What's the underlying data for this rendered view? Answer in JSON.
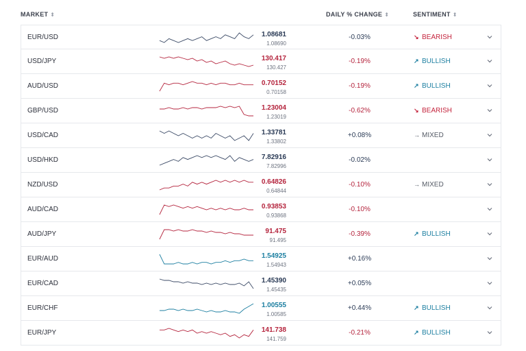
{
  "header": {
    "market": "MARKET",
    "daily_change": "DAILY % CHANGE",
    "sentiment": "SENTIMENT",
    "sort_icon": "sort-icon"
  },
  "colors": {
    "bearish": "#c4233c",
    "bullish": "#1b7ea0",
    "negative": "#b4233c",
    "neutral": "#2a3a55"
  },
  "rows": [
    {
      "pair": "EUR/USD",
      "price": "1.08681",
      "prev": "1.08690",
      "change": "-0.03%",
      "change_dir": "neutral",
      "price_dir": "up",
      "sentiment": "BEARISH",
      "sentiment_type": "bear",
      "spark": [
        6,
        7,
        5,
        6,
        7,
        6,
        5,
        6,
        5,
        4,
        6,
        5,
        4,
        5,
        3,
        4,
        5,
        2,
        4,
        5,
        3
      ]
    },
    {
      "pair": "USD/JPY",
      "price": "130.417",
      "prev": "130.427",
      "change": "-0.19%",
      "change_dir": "neg",
      "price_dir": "down",
      "sentiment": "BULLISH",
      "sentiment_type": "bull",
      "spark": [
        2,
        3,
        2,
        3,
        2,
        3,
        4,
        3,
        5,
        4,
        6,
        5,
        7,
        6,
        5,
        7,
        8,
        7,
        8,
        9,
        8
      ]
    },
    {
      "pair": "AUD/USD",
      "price": "0.70152",
      "prev": "0.70158",
      "change": "-0.19%",
      "change_dir": "neg",
      "price_dir": "down",
      "sentiment": "BULLISH",
      "sentiment_type": "bull",
      "spark": [
        8,
        3,
        4,
        3,
        3,
        4,
        3,
        2,
        3,
        3,
        4,
        3,
        4,
        3,
        3,
        4,
        4,
        3,
        4,
        4,
        4
      ]
    },
    {
      "pair": "GBP/USD",
      "price": "1.23004",
      "prev": "1.23019",
      "change": "-0.62%",
      "change_dir": "neg",
      "price_dir": "down",
      "sentiment": "BEARISH",
      "sentiment_type": "bear",
      "spark": [
        4,
        4,
        3,
        4,
        4,
        3,
        4,
        3,
        3,
        4,
        3,
        3,
        3,
        2,
        3,
        2,
        3,
        2,
        8,
        9,
        9
      ]
    },
    {
      "pair": "USD/CAD",
      "price": "1.33781",
      "prev": "1.33802",
      "change": "+0.08%",
      "change_dir": "pos",
      "price_dir": "up",
      "sentiment": "MIXED",
      "sentiment_type": "mixed",
      "spark": [
        4,
        5,
        4,
        5,
        6,
        5,
        6,
        7,
        6,
        7,
        6,
        7,
        5,
        6,
        7,
        6,
        8,
        7,
        6,
        8,
        5
      ]
    },
    {
      "pair": "USD/HKD",
      "price": "7.82916",
      "prev": "7.82996",
      "change": "-0.02%",
      "change_dir": "neutral",
      "price_dir": "up",
      "sentiment": "",
      "sentiment_type": "",
      "spark": [
        8,
        7,
        6,
        5,
        6,
        4,
        5,
        4,
        3,
        4,
        3,
        4,
        3,
        4,
        5,
        3,
        6,
        4,
        5,
        6,
        5
      ]
    },
    {
      "pair": "NZD/USD",
      "price": "0.64826",
      "prev": "0.64844",
      "change": "-0.10%",
      "change_dir": "neg",
      "price_dir": "down",
      "sentiment": "MIXED",
      "sentiment_type": "mixed",
      "spark": [
        9,
        8,
        8,
        7,
        7,
        6,
        7,
        5,
        6,
        5,
        6,
        5,
        4,
        5,
        4,
        5,
        4,
        5,
        4,
        5,
        5
      ]
    },
    {
      "pair": "AUD/CAD",
      "price": "0.93853",
      "prev": "0.93868",
      "change": "-0.10%",
      "change_dir": "neg",
      "price_dir": "down",
      "sentiment": "",
      "sentiment_type": "",
      "spark": [
        9,
        3,
        4,
        3,
        4,
        5,
        4,
        5,
        4,
        5,
        6,
        5,
        6,
        5,
        6,
        5,
        6,
        6,
        5,
        6,
        6
      ]
    },
    {
      "pair": "AUD/JPY",
      "price": "91.475",
      "prev": "91.495",
      "change": "-0.39%",
      "change_dir": "neg",
      "price_dir": "down",
      "sentiment": "BULLISH",
      "sentiment_type": "bull",
      "spark": [
        10,
        3,
        3,
        4,
        3,
        4,
        4,
        3,
        4,
        4,
        5,
        4,
        5,
        5,
        6,
        5,
        6,
        6,
        7,
        7,
        7
      ]
    },
    {
      "pair": "EUR/AUD",
      "price": "1.54925",
      "prev": "1.54943",
      "change": "+0.16%",
      "change_dir": "pos",
      "price_dir": "teal",
      "sentiment": "",
      "sentiment_type": "",
      "spark": [
        2,
        8,
        8,
        8,
        7,
        8,
        8,
        7,
        8,
        7,
        7,
        8,
        7,
        7,
        6,
        7,
        6,
        6,
        5,
        6,
        6
      ]
    },
    {
      "pair": "EUR/CAD",
      "price": "1.45390",
      "prev": "1.45435",
      "change": "+0.05%",
      "change_dir": "pos",
      "price_dir": "up",
      "sentiment": "",
      "sentiment_type": "",
      "spark": [
        3,
        4,
        4,
        5,
        5,
        6,
        5,
        6,
        6,
        7,
        6,
        7,
        6,
        7,
        6,
        7,
        7,
        6,
        8,
        5,
        10
      ]
    },
    {
      "pair": "EUR/CHF",
      "price": "1.00555",
      "prev": "1.00585",
      "change": "+0.44%",
      "change_dir": "pos",
      "price_dir": "teal",
      "sentiment": "BULLISH",
      "sentiment_type": "bull",
      "spark": [
        7,
        7,
        6,
        6,
        7,
        6,
        7,
        7,
        6,
        7,
        8,
        7,
        8,
        8,
        7,
        8,
        8,
        9,
        6,
        4,
        2
      ]
    },
    {
      "pair": "EUR/JPY",
      "price": "141.738",
      "prev": "141.759",
      "change": "-0.21%",
      "change_dir": "neg",
      "price_dir": "down",
      "sentiment": "BULLISH",
      "sentiment_type": "bull",
      "spark": [
        4,
        4,
        3,
        4,
        5,
        4,
        5,
        4,
        6,
        5,
        6,
        5,
        6,
        7,
        6,
        8,
        7,
        9,
        7,
        8,
        4
      ]
    }
  ]
}
